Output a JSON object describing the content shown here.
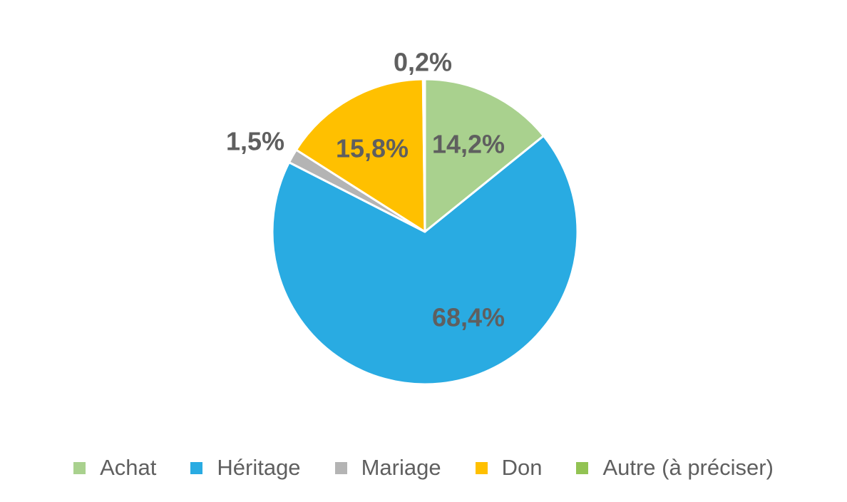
{
  "chart_data": {
    "type": "pie",
    "title": "",
    "slices": [
      {
        "label": "Achat",
        "value": 14.2,
        "display": "14,2%",
        "color": "#a9d18e"
      },
      {
        "label": "Héritage",
        "value": 68.4,
        "display": "68,4%",
        "color": "#29abe2"
      },
      {
        "label": "Mariage",
        "value": 1.5,
        "display": "1,5%",
        "color": "#b4b4b4"
      },
      {
        "label": "Don",
        "value": 15.8,
        "display": "15,8%",
        "color": "#ffc000"
      },
      {
        "label": "Autre (à préciser)",
        "value": 0.2,
        "display": "0,2%",
        "color": "#92c353"
      }
    ],
    "start_angle": "12 o'clock",
    "direction": "clockwise",
    "legend": "bottom"
  }
}
